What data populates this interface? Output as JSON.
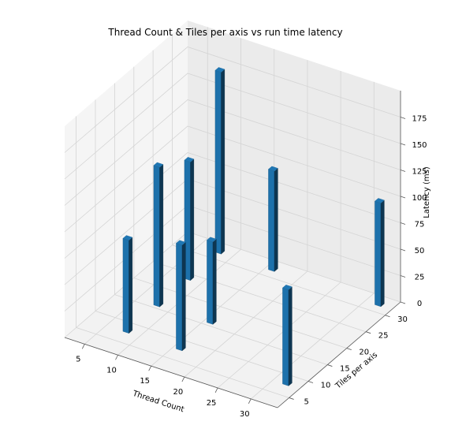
{
  "chart_data": {
    "type": "bar3d",
    "title": "Thread Count & Tiles per axis vs run time latency",
    "xlabel": "Thread Count",
    "ylabel": "Tiles per axis",
    "zlabel": "Latency (ms)",
    "x_ticks": [
      "5",
      "10",
      "15",
      "20",
      "25",
      "30"
    ],
    "y_ticks": [
      "5",
      "10",
      "15",
      "20",
      "25",
      "30"
    ],
    "z_ticks": [
      "0",
      "25",
      "50",
      "75",
      "100",
      "125",
      "150",
      "175"
    ],
    "xlim": [
      2,
      34
    ],
    "ylim": [
      2,
      34
    ],
    "zlim": [
      0,
      200
    ],
    "grid": true,
    "bar_color": "#1f77b4",
    "bars": [
      {
        "x": 8,
        "y": 16,
        "latency": 132
      },
      {
        "x": 8,
        "y": 8,
        "latency": 88
      },
      {
        "x": 8,
        "y": 32,
        "latency": 172
      },
      {
        "x": 8,
        "y": 24,
        "latency": 112
      },
      {
        "x": 16,
        "y": 32,
        "latency": 95
      },
      {
        "x": 16,
        "y": 16,
        "latency": 78
      },
      {
        "x": 16,
        "y": 8,
        "latency": 100
      },
      {
        "x": 32,
        "y": 32,
        "latency": 98
      },
      {
        "x": 32,
        "y": 8,
        "latency": 91
      }
    ]
  }
}
